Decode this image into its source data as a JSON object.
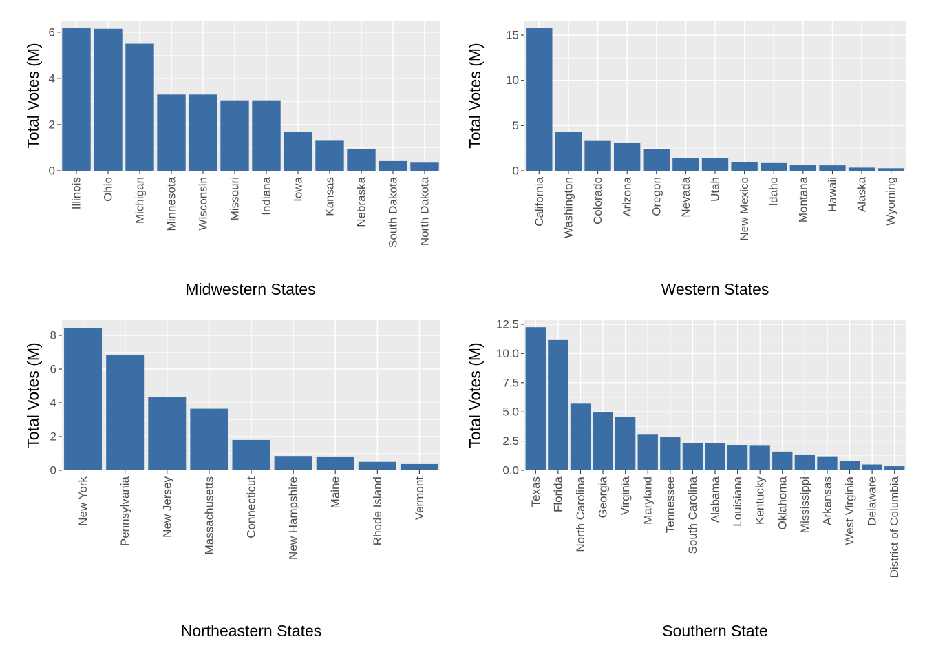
{
  "colors": {
    "bar": "#3a6ea5",
    "panel_background": "#ebebeb",
    "grid": "#ffffff"
  },
  "chart_data": [
    {
      "type": "bar",
      "xlabel": "Midwestern States",
      "ylabel": "Total Votes (M)",
      "categories": [
        "Illinois",
        "Ohio",
        "Michigan",
        "Minnesota",
        "Wisconsin",
        "Missouri",
        "Indiana",
        "Iowa",
        "Kansas",
        "Nebraska",
        "South Dakota",
        "North Dakota"
      ],
      "values": [
        6.2,
        6.15,
        5.5,
        3.3,
        3.3,
        3.05,
        3.05,
        1.7,
        1.3,
        0.95,
        0.42,
        0.35
      ],
      "ylim": [
        0,
        6.5
      ],
      "yticks": [
        0,
        2,
        4,
        6
      ],
      "ytick_labels": [
        "0",
        "2",
        "4",
        "6"
      ],
      "grid": true
    },
    {
      "type": "bar",
      "xlabel": "Western States",
      "ylabel": "Total Votes (M)",
      "categories": [
        "California",
        "Washington",
        "Colorado",
        "Arizona",
        "Oregon",
        "Nevada",
        "Utah",
        "New Mexico",
        "Idaho",
        "Montana",
        "Hawaii",
        "Alaska",
        "Wyoming"
      ],
      "values": [
        15.8,
        4.3,
        3.3,
        3.1,
        2.4,
        1.4,
        1.4,
        0.95,
        0.85,
        0.65,
        0.6,
        0.35,
        0.28
      ],
      "ylim": [
        0,
        16.6
      ],
      "yticks": [
        0,
        5,
        10,
        15
      ],
      "ytick_labels": [
        "0",
        "5",
        "10",
        "15"
      ],
      "grid": true
    },
    {
      "type": "bar",
      "xlabel": "Northeastern States",
      "ylabel": "Total Votes (M)",
      "categories": [
        "New York",
        "Pennsylvania",
        "New Jersey",
        "Massachusetts",
        "Connecticut",
        "New Hampshire",
        "Maine",
        "Rhode Island",
        "Vermont"
      ],
      "values": [
        8.45,
        6.85,
        4.35,
        3.65,
        1.8,
        0.85,
        0.82,
        0.5,
        0.37
      ],
      "ylim": [
        0,
        8.9
      ],
      "yticks": [
        0,
        2,
        4,
        6,
        8
      ],
      "ytick_labels": [
        "0",
        "2",
        "4",
        "6",
        "8"
      ],
      "grid": true
    },
    {
      "type": "bar",
      "xlabel": "Southern State",
      "ylabel": "Total Votes (M)",
      "categories": [
        "Texas",
        "Florida",
        "North Carolina",
        "Georgia",
        "Virginia",
        "Maryland",
        "Tennessee",
        "South Carolina",
        "Alabama",
        "Louisiana",
        "Kentucky",
        "Oklahoma",
        "Mississippi",
        "Arkansas",
        "West Virginia",
        "Delaware",
        "District of Columbia"
      ],
      "values": [
        12.25,
        11.15,
        5.7,
        4.95,
        4.55,
        3.05,
        2.85,
        2.35,
        2.3,
        2.15,
        2.1,
        1.6,
        1.3,
        1.2,
        0.8,
        0.5,
        0.35
      ],
      "ylim": [
        0,
        12.85
      ],
      "yticks": [
        0,
        2.5,
        5,
        7.5,
        10,
        12.5
      ],
      "ytick_labels": [
        "0.0",
        "2.5",
        "5.0",
        "7.5",
        "10.0",
        "12.5"
      ],
      "grid": true
    }
  ]
}
